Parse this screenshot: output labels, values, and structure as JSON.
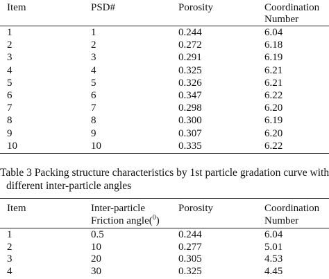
{
  "table2": {
    "headers": [
      "Item",
      "PSD#",
      "Porosity",
      "Coordination",
      "Number"
    ],
    "rows": [
      [
        "1",
        "1",
        "0.244",
        "6.04"
      ],
      [
        "2",
        "2",
        "0.272",
        "6.18"
      ],
      [
        "3",
        "3",
        "0.291",
        "6.19"
      ],
      [
        "4",
        "4",
        "0.325",
        "6.21"
      ],
      [
        "5",
        "5",
        "0.326",
        "6.21"
      ],
      [
        "6",
        "6",
        "0.347",
        "6.22"
      ],
      [
        "7",
        "7",
        "0.298",
        "6.20"
      ],
      [
        "8",
        "8",
        "0.300",
        "6.19"
      ],
      [
        "9",
        "9",
        "0.307",
        "6.20"
      ],
      [
        "10",
        "10",
        "0.335",
        "6.22"
      ]
    ]
  },
  "caption": {
    "line1": "Table 3 Packing structure characteristics by 1st particle gradation curve with",
    "line2": "different inter-particle angles"
  },
  "table3": {
    "headers": {
      "item": "Item",
      "angle_line1": "Inter-particle",
      "angle_line2_pre": "Friction angle(",
      "angle_sup": "0",
      "angle_line2_post": ")",
      "porosity": "Porosity",
      "coord_line1": "Coordination",
      "coord_line2": "Number"
    },
    "rows": [
      [
        "1",
        "0.5",
        "0.244",
        "6.04"
      ],
      [
        "2",
        "10",
        "0.277",
        "5.01"
      ],
      [
        "3",
        "20",
        "0.305",
        "4.53"
      ],
      [
        "4",
        "30",
        "0.325",
        "4.45"
      ]
    ]
  }
}
